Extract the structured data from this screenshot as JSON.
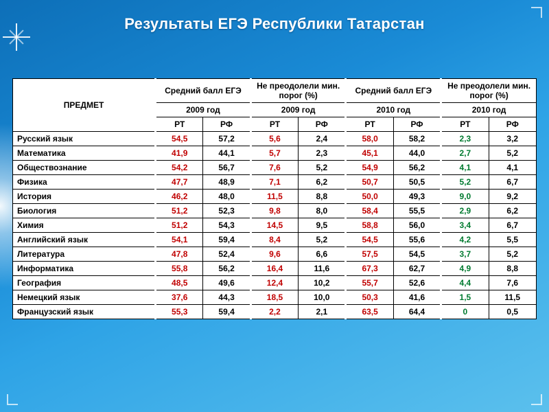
{
  "title": "Результаты ЕГЭ Республики Татарстан",
  "colors": {
    "rt": "#c00000",
    "rf_black": "#000000",
    "rf_green": "#007a2f",
    "border": "#000000",
    "bg_table": "#ffffff"
  },
  "fonts": {
    "title_pt": 22,
    "table_pt": 12,
    "family": "Arial"
  },
  "table": {
    "head": {
      "subject": "ПРЕДМЕТ",
      "sub": [
        "РТ",
        "РФ"
      ],
      "groups": [
        {
          "top": "Средний балл ЕГЭ",
          "year": "2009 год",
          "rt_color": "#c00000",
          "rf_color": "#000000"
        },
        {
          "top": "Не преодолели мин. порог (%)",
          "year": "2009 год",
          "rt_color": "#c00000",
          "rf_color": "#000000"
        },
        {
          "top": "Средний балл ЕГЭ",
          "year": "2010 год",
          "rt_color": "#c00000",
          "rf_color": "#000000"
        },
        {
          "top": "Не преодолели мин. порог (%)",
          "year": "2010 год",
          "rt_color": "#007a2f",
          "rf_color": "#000000"
        }
      ]
    },
    "rows": [
      {
        "subject": "Русский язык",
        "v": [
          "54,5",
          "57,2",
          "5,6",
          "2,4",
          "58,0",
          "58,2",
          "2,3",
          "3,2"
        ]
      },
      {
        "subject": "Математика",
        "v": [
          "41,9",
          "44,1",
          "5,7",
          "2,3",
          "45,1",
          "44,0",
          "2,7",
          "5,2"
        ]
      },
      {
        "subject": "Обществознание",
        "v": [
          "54,2",
          "56,7",
          "7,6",
          "5,2",
          "54,9",
          "56,2",
          "4,1",
          "4,1"
        ]
      },
      {
        "subject": "Физика",
        "v": [
          "47,7",
          "48,9",
          "7,1",
          "6,2",
          "50,7",
          "50,5",
          "5,2",
          "6,7"
        ]
      },
      {
        "subject": "История",
        "v": [
          "46,2",
          "48,0",
          "11,5",
          "8,8",
          "50,0",
          "49,3",
          "9,0",
          "9,2"
        ]
      },
      {
        "subject": "Биология",
        "v": [
          "51,2",
          "52,3",
          "9,8",
          "8,0",
          "58,4",
          "55,5",
          "2,9",
          "6,2"
        ]
      },
      {
        "subject": "Химия",
        "v": [
          "51,2",
          "54,3",
          "14,5",
          "9,5",
          "58,8",
          "56,0",
          "3,4",
          "6,7"
        ]
      },
      {
        "subject": "Английский язык",
        "v": [
          "54,1",
          "59,4",
          "8,4",
          "5,2",
          "54,5",
          "55,6",
          "4,2",
          "5,5"
        ]
      },
      {
        "subject": "Литература",
        "v": [
          "47,8",
          "52,4",
          "9,6",
          "6,6",
          "57,5",
          "54,5",
          "3,7",
          "5,2"
        ]
      },
      {
        "subject": "Информатика",
        "v": [
          "55,8",
          "56,2",
          "16,4",
          "11,6",
          "67,3",
          "62,7",
          "4,9",
          "8,8"
        ]
      },
      {
        "subject": "География",
        "v": [
          "48,5",
          "49,6",
          "12,4",
          "10,2",
          "55,7",
          "52,6",
          "4,4",
          "7,6"
        ]
      },
      {
        "subject": "Немецкий язык",
        "v": [
          "37,6",
          "44,3",
          "18,5",
          "10,0",
          "50,3",
          "41,6",
          "1,5",
          "11,5"
        ]
      },
      {
        "subject": "Французский язык",
        "v": [
          "55,3",
          "59,4",
          "2,2",
          "2,1",
          "63,5",
          "64,4",
          "0",
          "0,5"
        ]
      }
    ]
  }
}
